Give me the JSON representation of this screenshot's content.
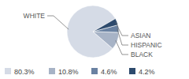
{
  "chart_data": {
    "type": "pie",
    "categories": [
      "WHITE",
      "BLACK",
      "HISPANIC",
      "ASIAN"
    ],
    "values": [
      80.3,
      10.8,
      4.6,
      4.2
    ],
    "value_labels": [
      "80.3%",
      "10.8%",
      "4.6%",
      "4.2%"
    ],
    "colors": [
      "#d5dbe6",
      "#a7b3c6",
      "#6a82a2",
      "#2d4a6d"
    ],
    "legend": "bottom"
  }
}
